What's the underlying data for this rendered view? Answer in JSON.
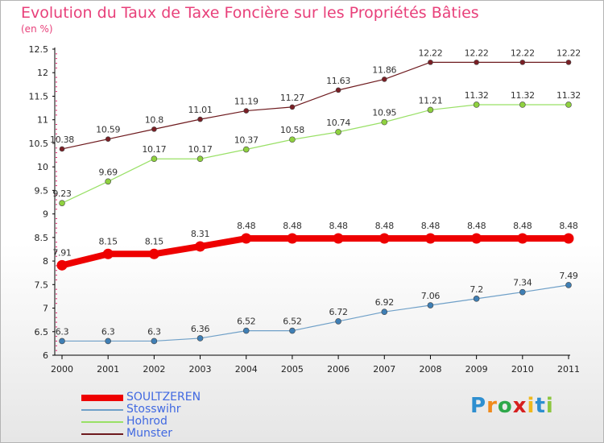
{
  "header": {
    "title": "Evolution du Taux de Taxe Foncière sur les Propriétés Bâties",
    "subtitle": "(en %)"
  },
  "colors": {
    "title": "#e8407a",
    "axis": "#000000",
    "grid_tick": "#e0206a"
  },
  "chart_data": {
    "type": "line",
    "title": "Evolution du Taux de Taxe Foncière sur les Propriétés Bâties",
    "ylabel": "(en %)",
    "xlabel": "",
    "ylim": [
      6,
      12.5
    ],
    "yticks": [
      "6",
      "6.5",
      "7",
      "7.5",
      "8",
      "8.5",
      "9",
      "9.5",
      "10",
      "10.5",
      "11",
      "11.5",
      "12",
      "12.5"
    ],
    "x": [
      "2000",
      "2001",
      "2002",
      "2003",
      "2004",
      "2005",
      "2006",
      "2007",
      "2008",
      "2009",
      "2010",
      "2011"
    ],
    "legend_position": "bottom-left",
    "series": [
      {
        "name": "Munster",
        "color": "#6e1a1e",
        "point": "#7a1f25",
        "width": 1.2,
        "marker": 3,
        "values": [
          10.38,
          10.59,
          10.8,
          11.01,
          11.19,
          11.27,
          11.63,
          11.86,
          12.22,
          12.22,
          12.22,
          12.22
        ],
        "labels": [
          "10.38",
          "10.59",
          "10.8",
          "11.01",
          "11.19",
          "11.27",
          "11.63",
          "11.86",
          "12.22",
          "12.22",
          "12.22",
          "12.22"
        ]
      },
      {
        "name": "Hohrod",
        "color": "#99e066",
        "point": "#8fd13f",
        "width": 1.2,
        "marker": 3.5,
        "values": [
          9.23,
          9.69,
          10.17,
          10.17,
          10.37,
          10.58,
          10.74,
          10.95,
          11.21,
          11.32,
          11.32,
          11.32
        ],
        "labels": [
          "9.23",
          "9.69",
          "10.17",
          "10.17",
          "10.37",
          "10.58",
          "10.74",
          "10.95",
          "11.21",
          "11.32",
          "11.32",
          "11.32"
        ]
      },
      {
        "name": "SOULTZEREN",
        "color": "#ee0000",
        "point": "#ee0000",
        "width": 8,
        "marker": 6.5,
        "values": [
          7.91,
          8.15,
          8.15,
          8.31,
          8.48,
          8.48,
          8.48,
          8.48,
          8.48,
          8.48,
          8.48,
          8.48
        ],
        "labels": [
          "7.91",
          "8.15",
          "8.15",
          "8.31",
          "8.48",
          "8.48",
          "8.48",
          "8.48",
          "8.48",
          "8.48",
          "8.48",
          "8.48"
        ]
      },
      {
        "name": "Stosswihr",
        "color": "#6fa0c8",
        "point": "#3f7fb5",
        "width": 1.2,
        "marker": 3.5,
        "values": [
          6.3,
          6.3,
          6.3,
          6.36,
          6.52,
          6.52,
          6.72,
          6.92,
          7.06,
          7.2,
          7.34,
          7.49
        ],
        "labels": [
          "6.3",
          "6.3",
          "6.3",
          "6.36",
          "6.52",
          "6.52",
          "6.72",
          "6.92",
          "7.06",
          "7.2",
          "7.34",
          "7.49"
        ]
      }
    ]
  },
  "legend": {
    "items": [
      {
        "label": "SOULTZEREN",
        "color": "#ee0000",
        "label_color": "#4169e1",
        "thickness": 8
      },
      {
        "label": "Stosswihr",
        "color": "#6fa0c8",
        "label_color": "#4169e1",
        "thickness": 2
      },
      {
        "label": "Hohrod",
        "color": "#99e066",
        "label_color": "#4169e1",
        "thickness": 2
      },
      {
        "label": "Munster",
        "color": "#6e1a1e",
        "label_color": "#4169e1",
        "thickness": 2
      }
    ]
  },
  "logo": {
    "letters": [
      "P",
      "r",
      "o",
      "x",
      "i",
      "t",
      "i"
    ],
    "colors": [
      "#2e8fd0",
      "#f08a1c",
      "#2ea84a",
      "#d62020",
      "#f0b81c",
      "#2e8fd0",
      "#8cc63f"
    ]
  }
}
